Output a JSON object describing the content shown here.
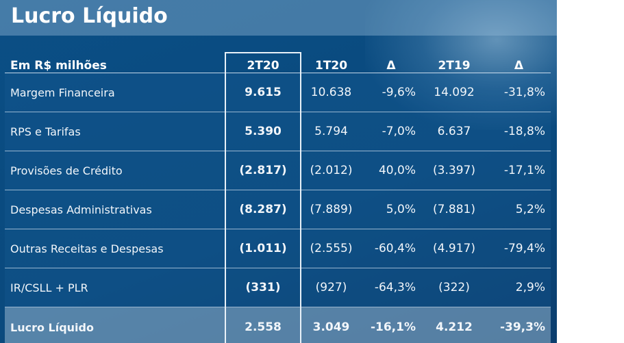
{
  "title": "Lucro Líquido",
  "table": {
    "headers": [
      "Em R$ milhões",
      "2T20",
      "1T20",
      "Δ",
      "2T19",
      "Δ"
    ],
    "rows": [
      [
        "Margem Financeira",
        "9.615",
        "10.638",
        "-9,6%",
        "14.092",
        "-31,8%"
      ],
      [
        "RPS e Tarifas",
        "5.390",
        "5.794",
        "-7,0%",
        "6.637",
        "-18,8%"
      ],
      [
        "Provisões de Crédito",
        "(2.817)",
        "(2.012)",
        "40,0%",
        "(3.397)",
        "-17,1%"
      ],
      [
        "Despesas Administrativas",
        "(8.287)",
        "(7.889)",
        "5,0%",
        "(7.881)",
        "5,2%"
      ],
      [
        "Outras Receitas e Despesas",
        "(1.011)",
        "(2.555)",
        "-60,4%",
        "(4.917)",
        "-79,4%"
      ],
      [
        "IR/CSLL + PLR",
        "(331)",
        "(927)",
        "-64,3%",
        "(322)",
        "2,9%"
      ]
    ],
    "total": [
      "Lucro Líquido",
      "2.558",
      "3.049",
      "-16,1%",
      "4.212",
      "-39,3%"
    ]
  }
}
